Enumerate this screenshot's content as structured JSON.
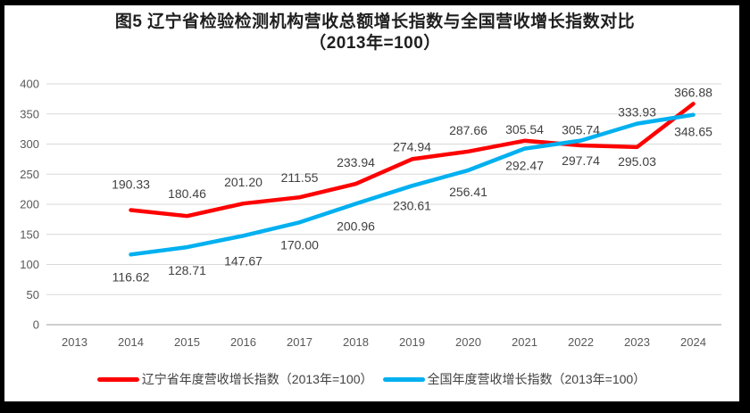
{
  "title": {
    "line1": "图5  辽宁省检验检测机构营收总额增长指数与全国营收增长指数对比",
    "line2": "（2013年=100）"
  },
  "colors": {
    "frame": "#000000",
    "background": "#FFFFFF",
    "grid": "#D9D9D9",
    "zero_line": "#BFBFBF",
    "axis_label": "#595959",
    "data_label": "#404040",
    "liaoning_red": "#FF0000",
    "national_blue": "#00B0F0"
  },
  "chart_data": {
    "type": "line",
    "title": "图5 辽宁省检验检测机构营收总额增长指数与全国营收增长指数对比（2013年=100）",
    "categories": [
      "2013",
      "2014",
      "2015",
      "2016",
      "2017",
      "2018",
      "2019",
      "2020",
      "2021",
      "2022",
      "2023",
      "2024"
    ],
    "ylim": [
      0,
      400
    ],
    "yticks": [
      0,
      50,
      100,
      150,
      200,
      250,
      300,
      350,
      400
    ],
    "grid": true,
    "legend_position": "bottom",
    "series": [
      {
        "key": "liaoning",
        "name": "辽宁省年度营收增长指数（2013年=100）",
        "color": "#FF0000",
        "x_start_index": 1,
        "values": [
          190.33,
          180.46,
          201.2,
          211.55,
          233.94,
          274.94,
          287.66,
          305.54,
          297.74,
          295.03,
          366.88
        ],
        "labels": [
          "190.33",
          "180.46",
          "201.20",
          "211.55",
          "233.94",
          "274.94",
          "287.66",
          "305.54",
          "297.74",
          "295.03",
          "366.88"
        ],
        "label_dy": [
          -24,
          -20,
          -19,
          -17,
          -19,
          -9,
          -19,
          -8,
          22,
          21,
          -8
        ]
      },
      {
        "key": "national",
        "name": "全国年度营收增长指数（2013年=100）",
        "color": "#00B0F0",
        "x_start_index": 1,
        "values": [
          116.62,
          128.71,
          147.67,
          170.0,
          200.96,
          230.61,
          256.41,
          292.47,
          305.74,
          333.93,
          348.65
        ],
        "labels": [
          "116.62",
          "128.71",
          "147.67",
          "170.00",
          "200.96",
          "230.61",
          "256.41",
          "292.47",
          "305.74",
          "333.93",
          "348.65"
        ],
        "label_dy": [
          30,
          31,
          33,
          30,
          30,
          27,
          29,
          24,
          -7,
          -8,
          24
        ]
      }
    ]
  }
}
